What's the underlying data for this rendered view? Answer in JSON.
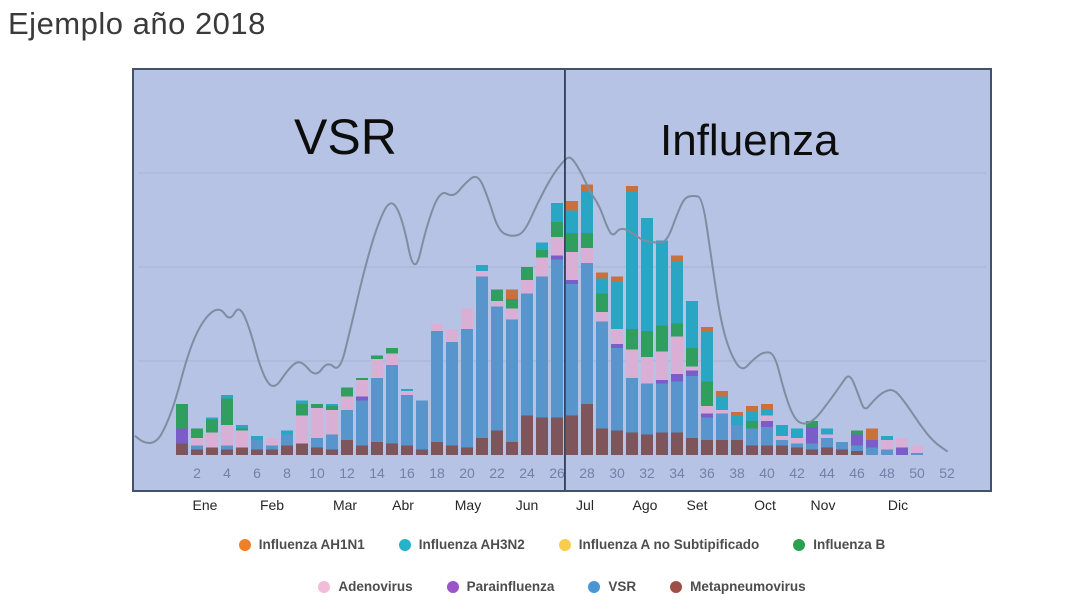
{
  "title": "Ejemplo año 2018",
  "chart": {
    "region_labels": {
      "left": "VSR",
      "right": "Influenza"
    },
    "months": [
      "Ene",
      "Feb",
      "Mar",
      "Abr",
      "May",
      "Jun",
      "Jul",
      "Ago",
      "Set",
      "Oct",
      "Nov",
      "Dic"
    ]
  },
  "colors": {
    "panel_background": "#b6c3e4",
    "panel_border": "#42526b",
    "gridline": "#a4b1d2",
    "divider_line": "#1d2c46",
    "trend_line": "#7f8da0",
    "week_tick_text": "#7181a8"
  },
  "chart_data": {
    "type": "bar",
    "stacked": true,
    "title": "Ejemplo año 2018",
    "xlabel": "",
    "ylabel": "",
    "x": [
      1,
      2,
      3,
      4,
      5,
      6,
      7,
      8,
      9,
      10,
      11,
      12,
      13,
      14,
      15,
      16,
      17,
      18,
      19,
      20,
      21,
      22,
      23,
      24,
      25,
      26,
      27,
      28,
      29,
      30,
      31,
      32,
      33,
      34,
      35,
      36,
      37,
      38,
      39,
      40,
      41,
      42,
      43,
      44,
      45,
      46,
      47,
      48,
      49,
      50,
      51,
      52
    ],
    "x_ticks": [
      2,
      4,
      6,
      8,
      10,
      12,
      14,
      16,
      18,
      20,
      22,
      24,
      26,
      28,
      30,
      32,
      34,
      36,
      38,
      40,
      42,
      44,
      46,
      48,
      50,
      52
    ],
    "ylim": [
      0,
      206
    ],
    "gridlines": [
      50,
      100,
      150
    ],
    "y_axis_labels_visible": false,
    "divider_week": 26.53,
    "stack_order_bottom_to_top": [
      "Metapneumovirus",
      "VSR",
      "Parainfluenza",
      "Adenovirus",
      "Influenza B",
      "Influenza AH3N2",
      "Influenza AH1N1",
      "Influenza A no Subtipificado"
    ],
    "series": [
      {
        "name": "Influenza AH1N1",
        "color": "#c9713c",
        "dot": "#f07f29",
        "values": [
          0,
          0,
          0,
          0,
          0,
          0,
          0,
          0,
          0,
          0,
          0,
          0,
          0,
          0,
          0,
          0,
          0,
          0,
          0,
          0,
          0,
          0,
          5,
          0,
          0,
          0,
          5,
          4,
          3,
          3,
          3,
          0,
          0,
          3,
          0,
          2,
          3,
          2,
          3,
          3,
          0,
          0,
          0,
          0,
          0,
          0,
          6,
          0,
          0,
          0,
          0,
          0
        ]
      },
      {
        "name": "Influenza AH3N2",
        "color": "#2aa6c5",
        "dot": "#27b1cd",
        "values": [
          0,
          0,
          1,
          2,
          2,
          2,
          0,
          2,
          2,
          0,
          1,
          0,
          0,
          0,
          0,
          1,
          0,
          0,
          0,
          0,
          3,
          0,
          0,
          0,
          4,
          10,
          12,
          22,
          8,
          25,
          73,
          60,
          45,
          33,
          25,
          27,
          7,
          5,
          5,
          3,
          6,
          5,
          0,
          3,
          0,
          0,
          0,
          2,
          0,
          0,
          0,
          0
        ]
      },
      {
        "name": "Influenza A no Subtipificado",
        "color": "#f0c23e",
        "dot": "#f6cd4e",
        "values": [
          0,
          0,
          0,
          0,
          0,
          0,
          0,
          0,
          0,
          0,
          0,
          0,
          0,
          0,
          0,
          0,
          0,
          0,
          0,
          0,
          0,
          0,
          0,
          0,
          0,
          0,
          0,
          0,
          0,
          0,
          0,
          0,
          0,
          0,
          0,
          0,
          0,
          0,
          0,
          0,
          0,
          0,
          0,
          0,
          0,
          0,
          0,
          0,
          0,
          0,
          0,
          0
        ]
      },
      {
        "name": "Influenza B",
        "color": "#2f9e5e",
        "dot": "#2aa14e",
        "values": [
          13,
          5,
          7,
          14,
          1,
          0,
          0,
          0,
          6,
          2,
          2,
          5,
          1,
          2,
          3,
          0,
          0,
          0,
          0,
          0,
          0,
          6,
          5,
          7,
          4,
          8,
          10,
          8,
          10,
          0,
          11,
          14,
          14,
          7,
          10,
          13,
          0,
          0,
          4,
          0,
          0,
          0,
          3,
          0,
          0,
          2,
          0,
          0,
          0,
          0,
          0,
          0
        ]
      },
      {
        "name": "Adenovirus",
        "color": "#d9afd6",
        "dot": "#f2bcd9",
        "values": [
          0,
          4,
          8,
          11,
          9,
          0,
          4,
          0,
          15,
          16,
          13,
          7,
          9,
          10,
          6,
          2,
          0,
          4,
          7,
          11,
          3,
          3,
          6,
          7,
          10,
          10,
          15,
          8,
          5,
          8,
          15,
          14,
          15,
          20,
          2,
          4,
          2,
          0,
          0,
          3,
          2,
          3,
          0,
          2,
          0,
          0,
          0,
          5,
          5,
          4,
          0,
          0
        ]
      },
      {
        "name": "Parainfluenza",
        "color": "#7a5dc8",
        "dot": "#9a55c9",
        "values": [
          8,
          0,
          0,
          0,
          0,
          0,
          0,
          0,
          0,
          0,
          0,
          0,
          2,
          0,
          0,
          0,
          0,
          0,
          0,
          0,
          0,
          0,
          0,
          0,
          0,
          2,
          2,
          0,
          0,
          2,
          0,
          0,
          2,
          4,
          3,
          2,
          0,
          0,
          0,
          3,
          0,
          0,
          9,
          0,
          0,
          6,
          4,
          0,
          4,
          0,
          0,
          0
        ]
      },
      {
        "name": "VSR",
        "color": "#5795cc",
        "dot": "#4a96d2",
        "values": [
          0,
          2,
          0,
          2,
          0,
          5,
          2,
          6,
          0,
          5,
          8,
          16,
          24,
          34,
          42,
          27,
          26,
          59,
          55,
          63,
          86,
          66,
          65,
          65,
          75,
          84,
          70,
          75,
          57,
          44,
          29,
          27,
          26,
          27,
          33,
          12,
          14,
          8,
          9,
          10,
          3,
          2,
          3,
          5,
          4,
          3,
          4,
          3,
          0,
          1,
          0,
          0
        ]
      },
      {
        "name": "Metapneumovirus",
        "color": "#7d555a",
        "dot": "#9e4f45",
        "values": [
          6,
          3,
          4,
          3,
          4,
          3,
          3,
          5,
          6,
          4,
          3,
          8,
          5,
          7,
          6,
          5,
          3,
          7,
          5,
          4,
          9,
          13,
          7,
          21,
          20,
          20,
          21,
          27,
          14,
          13,
          12,
          11,
          12,
          12,
          9,
          8,
          8,
          8,
          5,
          5,
          5,
          4,
          3,
          4,
          3,
          2,
          0,
          0,
          0,
          0,
          0,
          0
        ]
      }
    ],
    "trend_line": {
      "color": "#7f8da0",
      "points": [
        [
          -2.1,
          10
        ],
        [
          -1.0,
          2
        ],
        [
          0.3,
          21
        ],
        [
          1.5,
          57
        ],
        [
          2.5,
          73
        ],
        [
          3.5,
          79
        ],
        [
          4.2,
          71
        ],
        [
          4.8,
          80
        ],
        [
          5.5,
          68
        ],
        [
          6.3,
          44
        ],
        [
          7.1,
          34
        ],
        [
          8.1,
          46
        ],
        [
          8.9,
          51
        ],
        [
          9.9,
          41
        ],
        [
          10.7,
          50
        ],
        [
          11.5,
          44
        ],
        [
          12.2,
          66
        ],
        [
          13.1,
          97
        ],
        [
          14.0,
          122
        ],
        [
          14.9,
          137
        ],
        [
          15.7,
          126
        ],
        [
          16.5,
          94
        ],
        [
          17.3,
          122
        ],
        [
          18.2,
          141
        ],
        [
          19.1,
          137
        ],
        [
          19.8,
          144
        ],
        [
          20.7,
          150
        ],
        [
          21.4,
          137
        ],
        [
          22.1,
          119
        ],
        [
          23.0,
          116
        ],
        [
          23.8,
          118
        ],
        [
          24.7,
          134
        ],
        [
          25.7,
          149
        ],
        [
          26.5,
          157
        ],
        [
          26.9,
          159
        ],
        [
          27.5,
          152
        ],
        [
          28.2,
          140
        ],
        [
          28.8,
          133
        ],
        [
          29.3,
          122
        ],
        [
          29.7,
          116
        ],
        [
          30.2,
          121
        ],
        [
          30.9,
          119
        ],
        [
          31.7,
          114
        ],
        [
          32.5,
          113
        ],
        [
          33.3,
          113
        ],
        [
          34.0,
          128
        ],
        [
          34.5,
          137
        ],
        [
          35.1,
          138
        ],
        [
          35.7,
          137
        ],
        [
          36.3,
          104
        ],
        [
          36.9,
          72
        ],
        [
          37.5,
          55
        ],
        [
          38.3,
          44
        ],
        [
          39.1,
          51
        ],
        [
          39.8,
          55
        ],
        [
          40.5,
          54
        ],
        [
          41.1,
          35
        ],
        [
          41.7,
          21
        ],
        [
          42.3,
          16
        ],
        [
          43.1,
          18
        ],
        [
          44.0,
          27
        ],
        [
          44.9,
          37
        ],
        [
          45.5,
          44
        ],
        [
          46.1,
          32
        ],
        [
          46.5,
          23
        ],
        [
          47.1,
          29
        ],
        [
          47.8,
          34
        ],
        [
          48.5,
          35
        ],
        [
          49.3,
          27
        ],
        [
          50.2,
          16
        ],
        [
          51.1,
          7
        ],
        [
          52.0,
          2
        ]
      ]
    }
  },
  "legend": {
    "rows": [
      [
        "Influenza AH1N1",
        "Influenza AH3N2",
        "Influenza A no Subtipificado",
        "Influenza B"
      ],
      [
        "Adenovirus",
        "Parainfluenza",
        "VSR",
        "Metapneumovirus"
      ]
    ]
  }
}
